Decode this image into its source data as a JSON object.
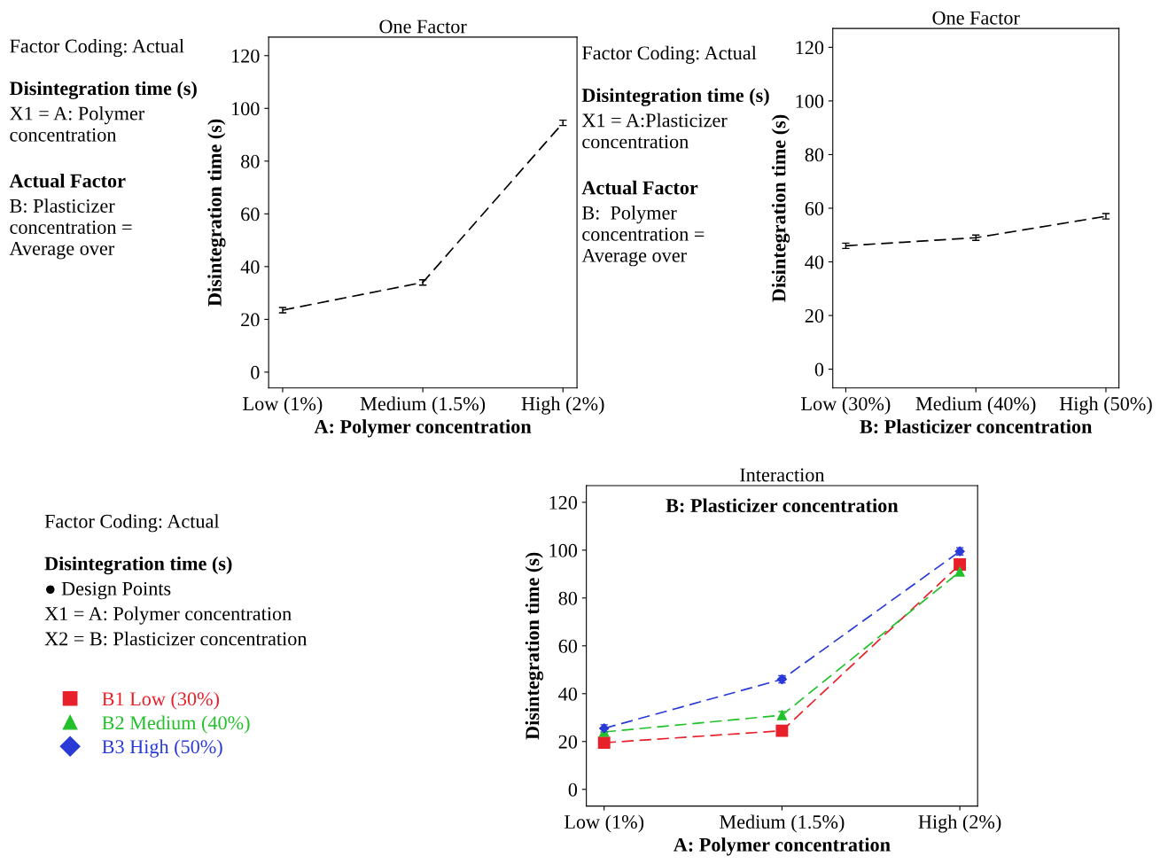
{
  "chart_data": [
    {
      "type": "line",
      "title": "One Factor",
      "xlabel": "A: Polymer concentration",
      "ylabel": "Disintegration time (s)",
      "categories": [
        "Low (1%)",
        "Medium (1.5%)",
        "High (2%)"
      ],
      "series": [
        {
          "color": "#000000",
          "values": [
            23.5,
            34,
            94.5
          ],
          "errors": [
            1,
            1,
            1
          ]
        }
      ],
      "ylim": [
        -6,
        127
      ],
      "yticks": [
        0,
        20,
        40,
        60,
        80,
        100,
        120
      ],
      "line_style": "dashed",
      "marker": "none",
      "grid": false,
      "legend": false,
      "annotations": [
        "Factor Coding: Actual",
        "Disintegration time (s)",
        "X1 = A: Polymer\nconcentration",
        "Actual Factor",
        "B: Plasticizer\nconcentration =\nAverage over"
      ]
    },
    {
      "type": "line",
      "title": "One Factor",
      "xlabel": "B: Plasticizer concentration",
      "ylabel": "Disintegration time (s)",
      "categories": [
        "Low (30%)",
        "Medium (40%)",
        "High (50%)"
      ],
      "series": [
        {
          "color": "#000000",
          "values": [
            46,
            49,
            57
          ],
          "errors": [
            1,
            1,
            1
          ]
        }
      ],
      "ylim": [
        -7,
        127
      ],
      "yticks": [
        0,
        20,
        40,
        60,
        80,
        100,
        120
      ],
      "line_style": "dashed",
      "marker": "none",
      "grid": false,
      "legend": false,
      "annotations": [
        "Factor Coding: Actual",
        "Disintegration time (s)",
        "X1 = A:Plasticizer\nconcentration",
        "Actual Factor",
        "B:  Polymer\nconcentration =\nAverage over"
      ]
    },
    {
      "type": "line",
      "title": "Interaction",
      "subtitle": "B: Plasticizer concentration",
      "xlabel": "A: Polymer concentration",
      "ylabel": "Disintegration time (s)",
      "categories": [
        "Low (1%)",
        "Medium (1.5%)",
        "High (2%)"
      ],
      "series": [
        {
          "name": "B1 Low (30%)",
          "color": "#e8202a",
          "marker": "square",
          "values": [
            19.5,
            24.5,
            94
          ],
          "errors": [
            1.5,
            1.5,
            1.5
          ]
        },
        {
          "name": "B2 Medium (40%)",
          "color": "#22c02a",
          "marker": "triangle",
          "values": [
            24,
            31,
            91
          ],
          "errors": [
            1.5,
            1.5,
            1.5
          ]
        },
        {
          "name": "B3 High (50%)",
          "color": "#2a3ad6",
          "marker": "diamond",
          "values": [
            25.5,
            46,
            99.5
          ],
          "errors": [
            1.5,
            1.5,
            1.5
          ]
        }
      ],
      "ylim": [
        -7,
        127
      ],
      "yticks": [
        0,
        20,
        40,
        60,
        80,
        100,
        120
      ],
      "line_style": "dashed",
      "marker": "circle",
      "grid": false,
      "legend": "left",
      "annotations": [
        "Factor Coding: Actual",
        "Disintegration time (s)",
        "● Design Points",
        "X1 = A: Polymer concentration",
        "X2 = B: Plasticizer concentration"
      ]
    }
  ]
}
